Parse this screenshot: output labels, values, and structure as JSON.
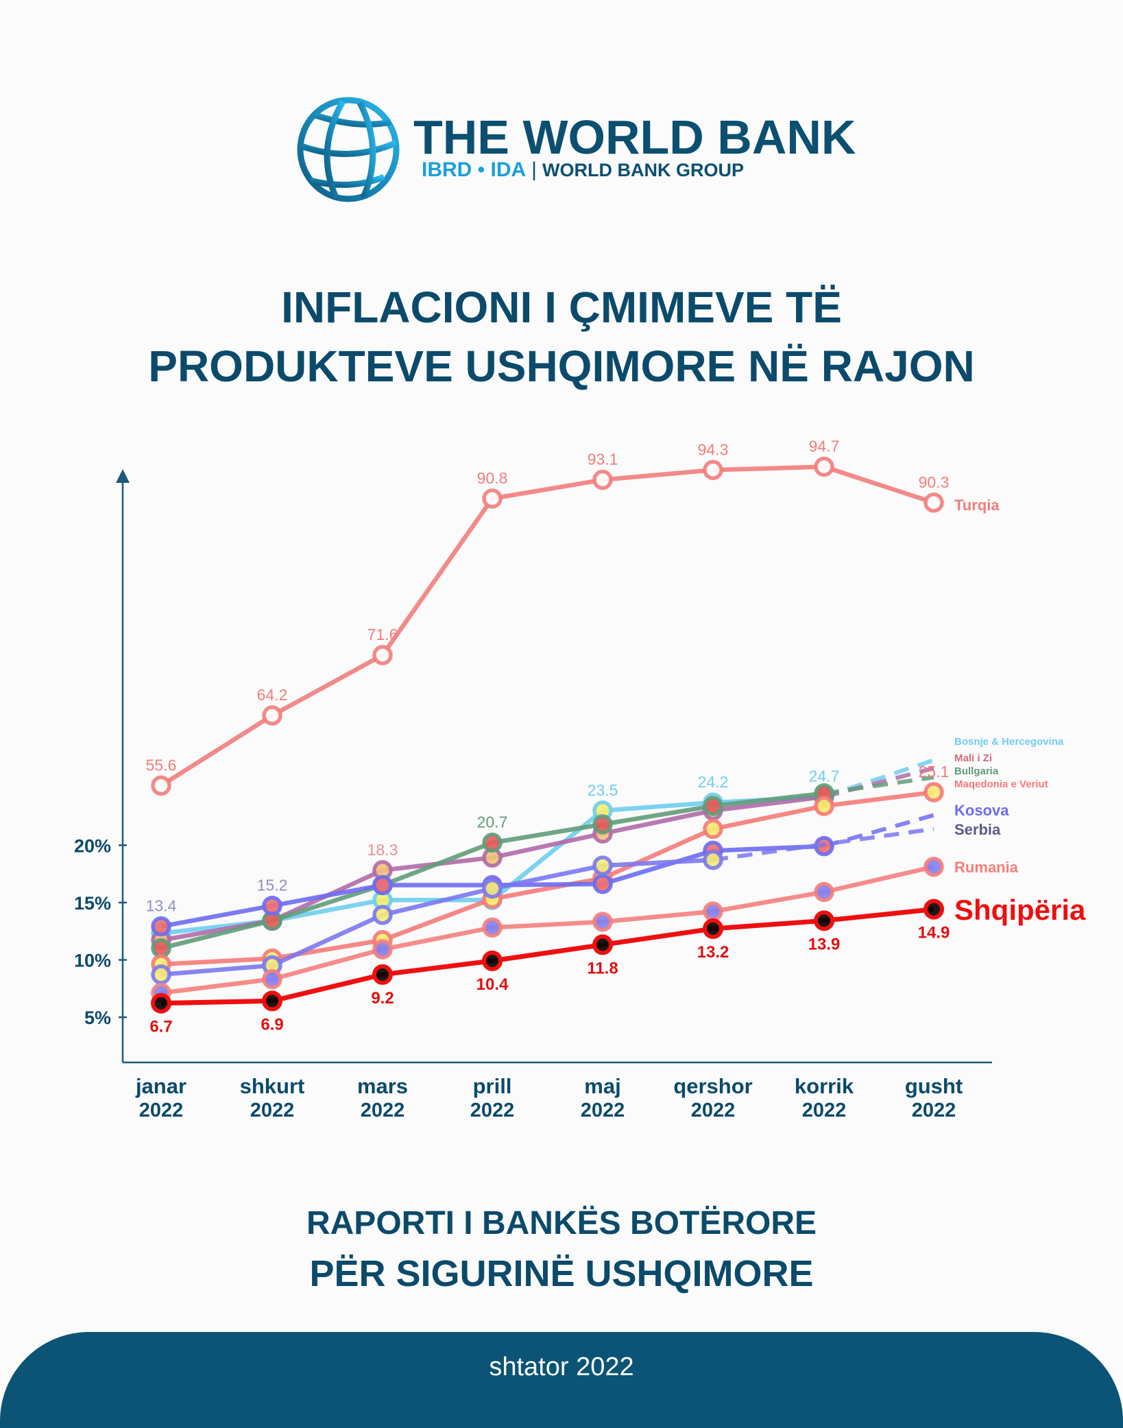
{
  "logo": {
    "title": "THE WORLD BANK",
    "ibrd": "IBRD • IDA",
    "separator": "|",
    "group": "WORLD BANK GROUP"
  },
  "title": {
    "line1": "INFLACIONI I ÇMIMEVE TË",
    "line2": "PRODUKTEVE USHQIMORE NË RAJON"
  },
  "chart_data": {
    "type": "line",
    "title": "INFLACIONI I ÇMIMEVE TË PRODUKTEVE USHQIMORE NË RAJON",
    "xlabel": "",
    "ylabel": "",
    "categories": [
      {
        "month": "janar",
        "year": "2022"
      },
      {
        "month": "shkurt",
        "year": "2022"
      },
      {
        "month": "mars",
        "year": "2022"
      },
      {
        "month": "prill",
        "year": "2022"
      },
      {
        "month": "maj",
        "year": "2022"
      },
      {
        "month": "qershor",
        "year": "2022"
      },
      {
        "month": "korrik",
        "year": "2022"
      },
      {
        "month": "gusht",
        "year": "2022"
      }
    ],
    "yticks": [
      {
        "value": 20,
        "label": "20%"
      },
      {
        "value": 15,
        "label": "15%"
      },
      {
        "value": 10,
        "label": "10%"
      },
      {
        "value": 5,
        "label": "5%"
      }
    ],
    "axis_break": "Turqia plotted on compressed upper scale",
    "grid": false,
    "legend_placement": "right (line-end labels)",
    "series": [
      {
        "name": "Turqia",
        "color": "#f27d7b",
        "fill": "#ffffff",
        "scale": "upper",
        "values": [
          55.6,
          64.2,
          71.6,
          90.8,
          93.1,
          94.3,
          94.7,
          90.3
        ],
        "labeled_points": [
          0,
          1,
          2,
          3,
          4,
          5,
          6,
          7
        ],
        "label_side": "above",
        "label_color": "#f27d7b",
        "legend_size": "medium"
      },
      {
        "name": "Bosnje & Hercegovina",
        "color": "#6fcdf0",
        "fill": "#f5ef6a",
        "scale": "lower",
        "values": [
          12.8,
          13.9,
          15.7,
          15.7,
          23.5,
          24.2,
          24.7,
          null
        ],
        "projected_last": 27.9,
        "labeled_points": [
          4,
          5,
          6
        ],
        "label_side": "above",
        "label_color": "#6fcdf0",
        "legend_size": "small"
      },
      {
        "name": "Mali i Zi",
        "color": "#b06aa8",
        "fill": "#f2c27a",
        "scale": "lower",
        "values": [
          12.2,
          13.9,
          18.3,
          19.4,
          21.5,
          23.5,
          24.7,
          null
        ],
        "projected_last": 27.2,
        "labeled_points": [
          2
        ],
        "label_side": "above",
        "label_color": "#e98e95",
        "legend_size": "small",
        "legend_color": "#d46a7a"
      },
      {
        "name": "Bullgaria",
        "color": "#5f9c79",
        "fill": "#e85a5a",
        "scale": "lower",
        "values": [
          11.5,
          13.9,
          17.0,
          20.7,
          22.3,
          23.9,
          25.0,
          null
        ],
        "projected_last": 26.4,
        "labeled_points": [
          3
        ],
        "label_side": "above",
        "label_color": "#5f9c79",
        "legend_size": "small"
      },
      {
        "name": "Maqedonia e Veriut",
        "color": "#f47a78",
        "fill": "#f7ec72",
        "scale": "lower",
        "values": [
          10.1,
          10.6,
          12.2,
          15.8,
          17.6,
          21.9,
          23.9,
          25.1
        ],
        "labeled_points": [
          7
        ],
        "label_side": "above",
        "label_color": "#f47a78",
        "legend_size": "small"
      },
      {
        "name": "Kosova",
        "color": "#6d6cf2",
        "fill": "#f07070",
        "scale": "lower",
        "values": [
          13.4,
          15.2,
          17.0,
          17.0,
          17.1,
          20.0,
          20.4,
          null
        ],
        "projected_last": 23.1,
        "labeled_points": [
          0,
          1
        ],
        "label_side": "above",
        "label_color": "#8f8fc4",
        "legend_size": "medium"
      },
      {
        "name": "Serbia",
        "color": "#7a78f0",
        "fill": "#f5ea78",
        "scale": "lower",
        "values": [
          9.2,
          10.0,
          14.4,
          16.7,
          18.7,
          19.2,
          null,
          null
        ],
        "projected_last": 21.9,
        "labeled_points": [],
        "label_side": "above",
        "label_color": "#5a5a88",
        "legend_size": "medium",
        "legend_color": "#5a5a88"
      },
      {
        "name": "Rumania",
        "color": "#f47f7d",
        "fill": "#7f7ff2",
        "scale": "lower",
        "values": [
          7.6,
          8.8,
          11.4,
          13.3,
          13.8,
          14.7,
          16.4,
          18.6
        ],
        "labeled_points": [],
        "label_side": "above",
        "label_color": "#f47f7d",
        "legend_size": "medium"
      },
      {
        "name": "Shqipëria",
        "color": "#ee0f0f",
        "fill": "#000000",
        "scale": "lower",
        "values": [
          6.7,
          6.9,
          9.2,
          10.4,
          11.8,
          13.2,
          13.9,
          14.9
        ],
        "labeled_points": [
          0,
          1,
          2,
          3,
          4,
          5,
          6,
          7
        ],
        "label_side": "below",
        "label_color": "#e01010",
        "legend_size": "large"
      }
    ]
  },
  "footer": {
    "line1": "RAPORTI I BANKËS BOTËRORE",
    "line2": "PËR SIGURINË USHQIMORE",
    "date": "shtator 2022"
  }
}
